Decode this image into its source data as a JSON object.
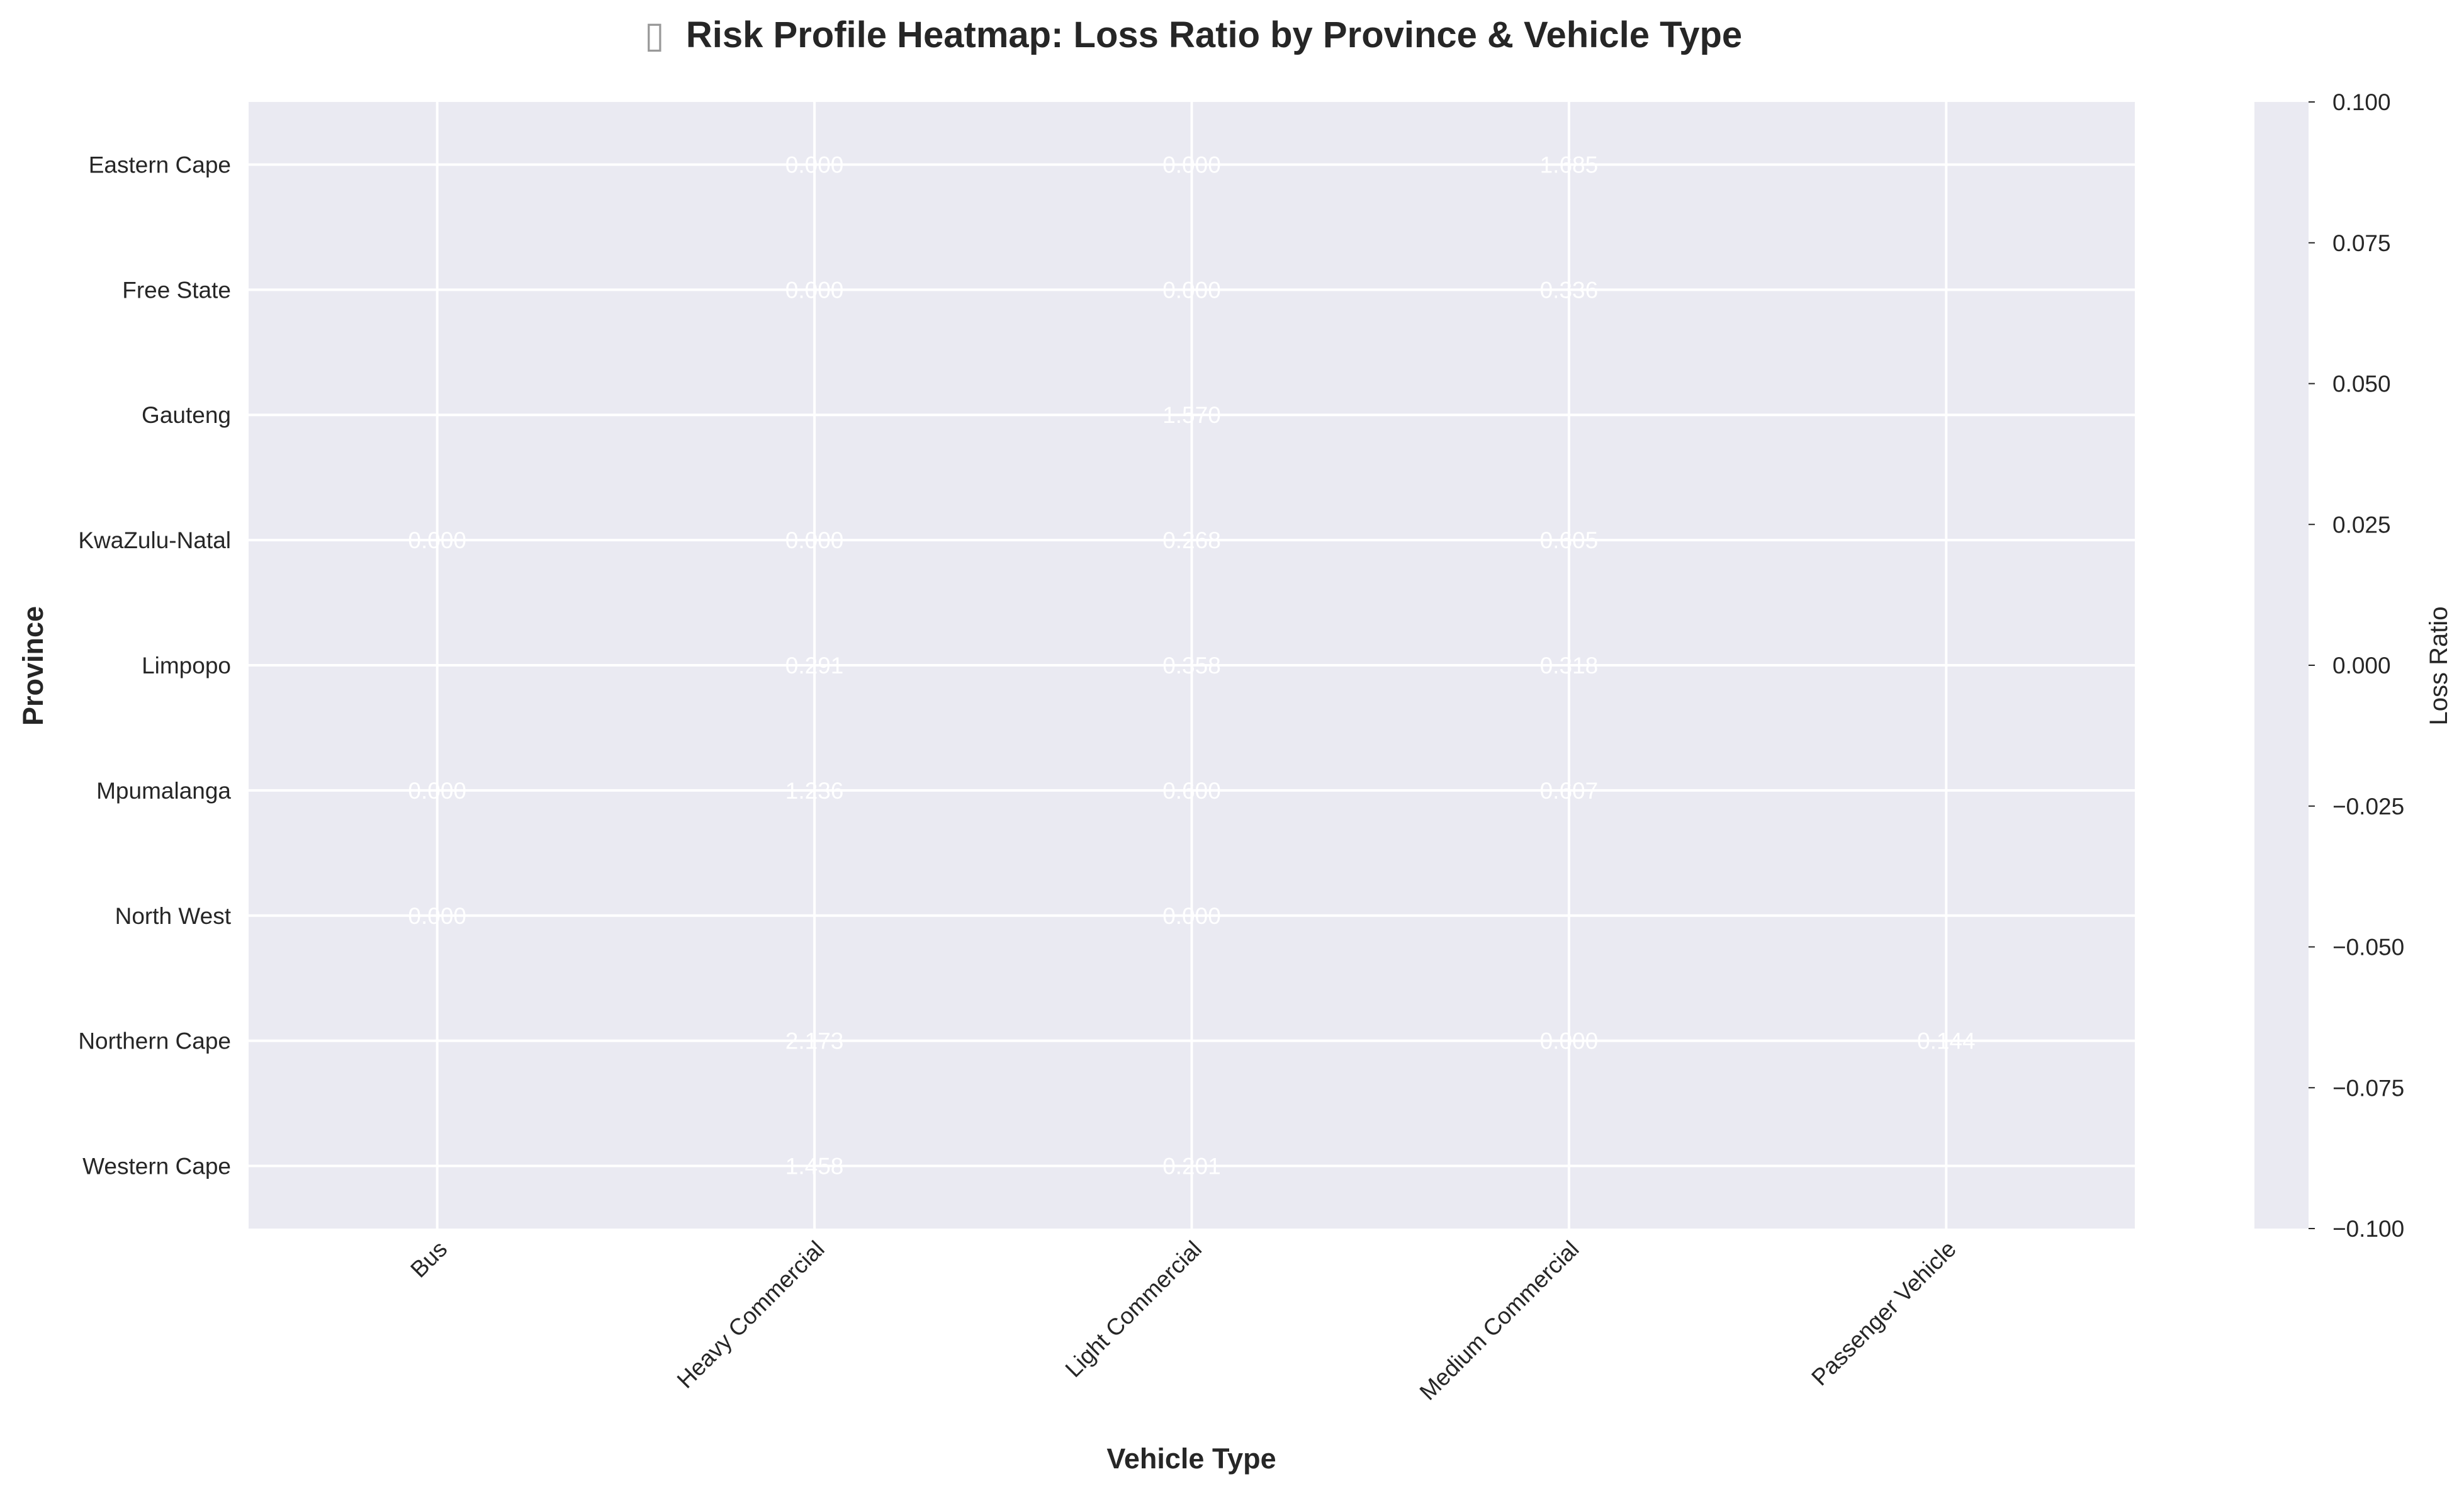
{
  "chart_data": {
    "type": "heatmap",
    "title": "Risk Profile Heatmap: Loss Ratio by Province & Vehicle Type",
    "title_icon": "▯",
    "xlabel": "Vehicle Type",
    "ylabel": "Province",
    "colorbar_label": "Loss Ratio",
    "colorbar_ticks": [
      "0.100",
      "0.075",
      "0.050",
      "0.025",
      "0.000",
      "−0.025",
      "−0.050",
      "−0.075",
      "−0.100"
    ],
    "colorbar_range": [
      -0.1,
      0.1
    ],
    "x_categories": [
      "Bus",
      "Heavy Commercial",
      "Light Commercial",
      "Medium Commercial",
      "Passenger Vehicle"
    ],
    "y_categories": [
      "Eastern Cape",
      "Free State",
      "Gauteng",
      "KwaZulu-Natal",
      "Limpopo",
      "Mpumalanga",
      "North West",
      "Northern Cape",
      "Western Cape"
    ],
    "values": [
      [
        null,
        "0.000",
        "0.000",
        "1.685",
        null
      ],
      [
        null,
        "0.000",
        "0.000",
        "0.336",
        null
      ],
      [
        null,
        null,
        "1.570",
        null,
        null
      ],
      [
        "0.000",
        "0.000",
        "0.268",
        "0.605",
        null
      ],
      [
        null,
        "0.291",
        "0.358",
        "0.318",
        null
      ],
      [
        "0.000",
        "1.236",
        "0.600",
        "0.607",
        null
      ],
      [
        "0.000",
        null,
        "0.000",
        null,
        null
      ],
      [
        null,
        "2.173",
        null,
        "0.000",
        "0.144"
      ],
      [
        null,
        "1.458",
        "0.201",
        null,
        null
      ]
    ],
    "grid": true,
    "colors": {
      "background": "#eaeaf2",
      "grid": "#ffffff",
      "annotation": "#ffffff",
      "text": "#262626"
    }
  }
}
